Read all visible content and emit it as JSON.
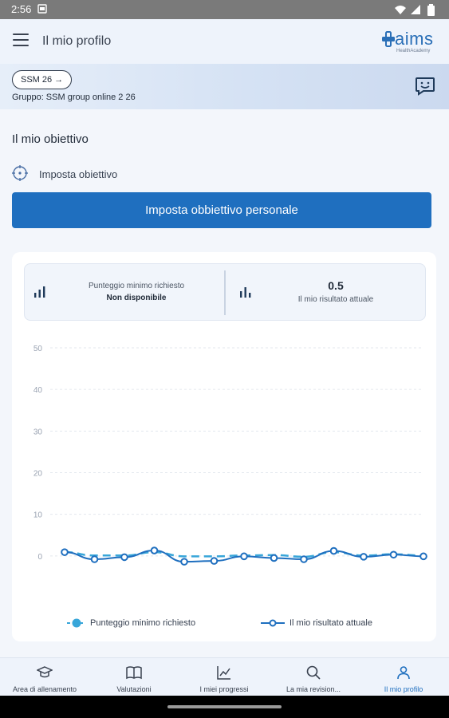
{
  "status_bar": {
    "time": "2:56"
  },
  "app_bar": {
    "title": "Il mio profilo",
    "logo_text": "aims",
    "logo_subtext": "HealthAcademy"
  },
  "banner": {
    "chip_label": "SSM 26 →",
    "group_text": "Gruppo: SSM group online 2 26"
  },
  "objective": {
    "section_title": "Il mio obiettivo",
    "set_label": "Imposta obiettivo",
    "button_label": "Imposta obbiettivo personale"
  },
  "stats": {
    "min_score": {
      "title": "Punteggio minimo richiesto",
      "value": "Non disponibile"
    },
    "current": {
      "value": "0.5",
      "title": "Il mio risultato attuale"
    }
  },
  "chart_data": {
    "type": "line",
    "ylim": [
      -10,
      50
    ],
    "y_ticks": [
      "50",
      "40",
      "30",
      "20",
      "10",
      "0",
      "-10"
    ],
    "grid": true,
    "legend_position": "bottom",
    "series": [
      {
        "name": "Punteggio minimo richiesto",
        "values": [
          0.9,
          0.1,
          0.1,
          0.9,
          -0.1,
          -0.1,
          0.1,
          0.2,
          -0.2,
          0.9,
          0.1,
          0.4,
          0.1
        ],
        "color": "#38a6d9",
        "style": "dashed"
      },
      {
        "name": "Il mio risultato attuale",
        "values": [
          0.9,
          -0.8,
          -0.3,
          1.3,
          -1.4,
          -1.2,
          -0.1,
          -0.5,
          -0.8,
          1.2,
          -0.2,
          0.3,
          -0.1
        ],
        "color": "#1f6fbf",
        "style": "solid"
      }
    ]
  },
  "bottom_nav": {
    "items": [
      {
        "label": "Area di allenamento"
      },
      {
        "label": "Valutazioni"
      },
      {
        "label": "I miei progressi"
      },
      {
        "label": "La mia revision..."
      },
      {
        "label": "Il mio profilo"
      }
    ]
  }
}
